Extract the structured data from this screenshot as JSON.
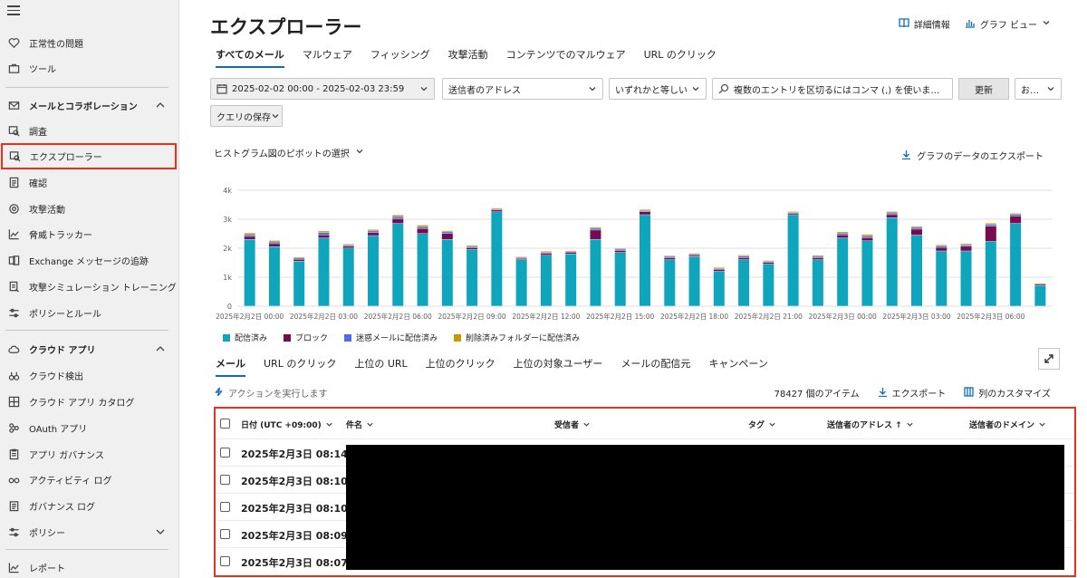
{
  "sidebar": {
    "items": [
      {
        "label": "正常性の問題",
        "icon": "heart-icon"
      },
      {
        "label": "ツール",
        "icon": "toolbox-icon"
      },
      {
        "label": "メールとコラボレーション",
        "icon": "mail-icon",
        "section": true
      },
      {
        "label": "調査",
        "icon": "investigation-icon"
      },
      {
        "label": "エクスプローラー",
        "icon": "explorer-icon",
        "active": true
      },
      {
        "label": "確認",
        "icon": "document-icon"
      },
      {
        "label": "攻撃活動",
        "icon": "target-icon"
      },
      {
        "label": "脅威トラッカー",
        "icon": "trend-icon"
      },
      {
        "label": "Exchange メッセージの追跡",
        "icon": "exchange-icon"
      },
      {
        "label": "攻撃シミュレーション トレーニング",
        "icon": "simulation-icon"
      },
      {
        "label": "ポリシーとルール",
        "icon": "sliders-icon"
      },
      {
        "label": "クラウド アプリ",
        "icon": "cloud-icon",
        "section": true
      },
      {
        "label": "クラウド検出",
        "icon": "binoculars-icon"
      },
      {
        "label": "クラウド アプリ カタログ",
        "icon": "catalog-icon"
      },
      {
        "label": "OAuth アプリ",
        "icon": "oauth-icon"
      },
      {
        "label": "アプリ ガバナンス",
        "icon": "governance-icon"
      },
      {
        "label": "アクティビティ ログ",
        "icon": "glasses-icon"
      },
      {
        "label": "ガバナンス ログ",
        "icon": "log-icon"
      },
      {
        "label": "ポリシー",
        "icon": "sliders-icon"
      },
      {
        "label": "レポート",
        "icon": "report-icon"
      }
    ]
  },
  "header": {
    "title": "エクスプローラー",
    "details_label": "詳細情報",
    "graph_view_label": "グラフ ビュー"
  },
  "tabs": [
    "すべてのメール",
    "マルウェア",
    "フィッシング",
    "攻撃活動",
    "コンテンツでのマルウェア",
    "URL のクリック"
  ],
  "filters": {
    "date_range": "2025-02-02 00:00 - 2025-02-03 23:59",
    "field": "送信者のアドレス",
    "operator": "いずれかと等しい",
    "search_placeholder": "複数のエントリを区切るにはコンマ (,) を使います。結…",
    "refresh_label": "更新",
    "more_label": "お…",
    "save_query_label": "クエリの保存"
  },
  "pivot_label": "ヒストグラム図のピボットの選択",
  "export_graph_label": "グラフのデータのエクスポート",
  "chart_data": {
    "type": "bar",
    "stacked": true,
    "ylim": [
      0,
      4000
    ],
    "yticks": [
      "0",
      "1k",
      "2k",
      "3k",
      "4k"
    ],
    "x_tick_labels": [
      "2025年2月2日 00:00",
      "2025年2月2日 03:00",
      "2025年2月2日 06:00",
      "2025年2月2日 09:00",
      "2025年2月2日 12:00",
      "2025年2月2日 15:00",
      "2025年2月2日 18:00",
      "2025年2月2日 21:00",
      "2025年2月3日 00:00",
      "2025年2月3日 03:00",
      "2025年2月3日 06:00"
    ],
    "series": [
      {
        "name": "配信済み",
        "color": "#0fa5bd",
        "values": [
          2300,
          2050,
          1550,
          2350,
          2000,
          2430,
          2850,
          2500,
          2300,
          1950,
          3250,
          1600,
          1750,
          1800,
          2300,
          1850,
          3150,
          1600,
          1700,
          1200,
          1600,
          1450,
          3150,
          1600,
          2350,
          2250,
          3050,
          2450,
          1900,
          1900,
          2230,
          2850,
          700
        ]
      },
      {
        "name": "ブロック",
        "color": "#7a0a4e",
        "values": [
          100,
          100,
          60,
          100,
          60,
          100,
          150,
          170,
          200,
          60,
          60,
          40,
          60,
          50,
          320,
          60,
          100,
          60,
          40,
          60,
          60,
          50,
          40,
          60,
          100,
          100,
          100,
          200,
          120,
          160,
          520,
          250,
          40
        ]
      },
      {
        "name": "迷惑メールに配信済み",
        "color": "#4f6bed",
        "values": [
          60,
          60,
          40,
          80,
          40,
          60,
          80,
          60,
          60,
          40,
          30,
          30,
          40,
          30,
          60,
          50,
          40,
          50,
          40,
          30,
          60,
          40,
          30,
          50,
          60,
          60,
          60,
          60,
          50,
          50,
          60,
          60,
          20
        ]
      },
      {
        "name": "削除済みフォルダーに配信済み",
        "color": "#c19c00",
        "values": [
          60,
          50,
          40,
          60,
          40,
          50,
          60,
          60,
          40,
          40,
          40,
          30,
          40,
          30,
          40,
          30,
          40,
          30,
          40,
          40,
          40,
          30,
          40,
          40,
          50,
          60,
          50,
          40,
          40,
          40,
          50,
          40,
          20
        ]
      }
    ]
  },
  "subtabs": [
    "メール",
    "URL のクリック",
    "上位の URL",
    "上位のクリック",
    "上位の対象ユーザー",
    "メールの配信元",
    "キャンペーン"
  ],
  "action_label": "アクションを実行します",
  "item_count": "78427 個のアイテム",
  "export_label": "エクスポート",
  "customize_label": "列のカスタマイズ",
  "table": {
    "columns": [
      "日付 (UTC +09:00)",
      "件名",
      "受信者",
      "タグ",
      "送信者のアドレス ↑",
      "送信者のドメイン"
    ],
    "rows": [
      {
        "date": "2025年2月3日 08:14"
      },
      {
        "date": "2025年2月3日 08:10"
      },
      {
        "date": "2025年2月3日 08:10"
      },
      {
        "date": "2025年2月3日 08:09"
      },
      {
        "date": "2025年2月3日 08:07"
      }
    ]
  }
}
